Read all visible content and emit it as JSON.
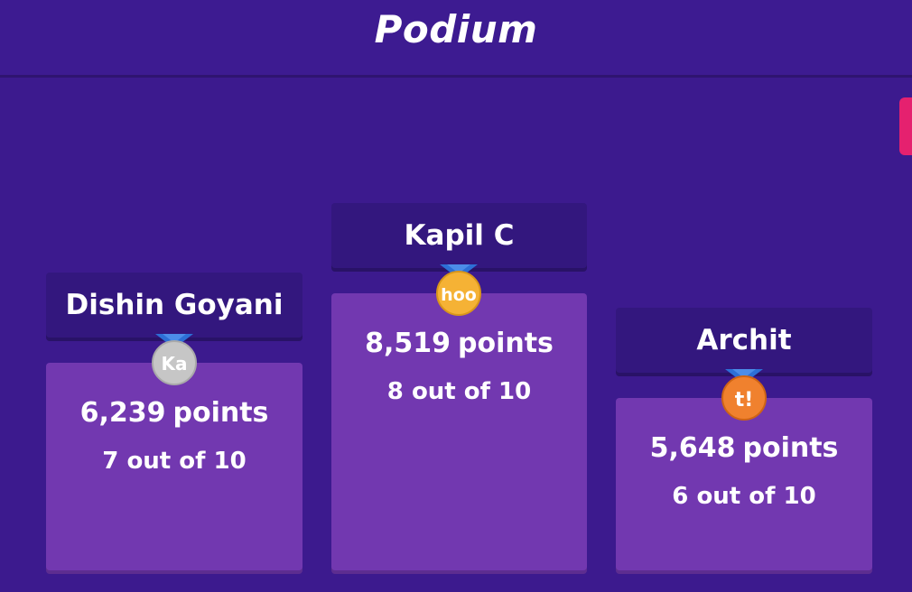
{
  "header": {
    "title": "Podium"
  },
  "colors": {
    "background": "#3c1a8e",
    "name_bar": "#33177e",
    "block": "#7238b0",
    "side_tab": "#e5216f",
    "gold": "#f5b235",
    "silver": "#c6c6c6",
    "bronze": "#f0812e",
    "ribbon": "#2d6fd6"
  },
  "podium": [
    {
      "place": "second",
      "name": "Dishin Goyani",
      "points": "6,239",
      "points_unit": "points",
      "correct": "7 out of 10",
      "medal_text": "Ka",
      "medal_icon": "silver-medal-icon"
    },
    {
      "place": "first",
      "name": "Kapil C",
      "points": "8,519",
      "points_unit": "points",
      "correct": "8 out of 10",
      "medal_text": "hoo",
      "medal_icon": "gold-medal-icon"
    },
    {
      "place": "third",
      "name": "Archit",
      "points": "5,648",
      "points_unit": "points",
      "correct": "6 out of 10",
      "medal_text": "t!",
      "medal_icon": "bronze-medal-icon"
    }
  ]
}
